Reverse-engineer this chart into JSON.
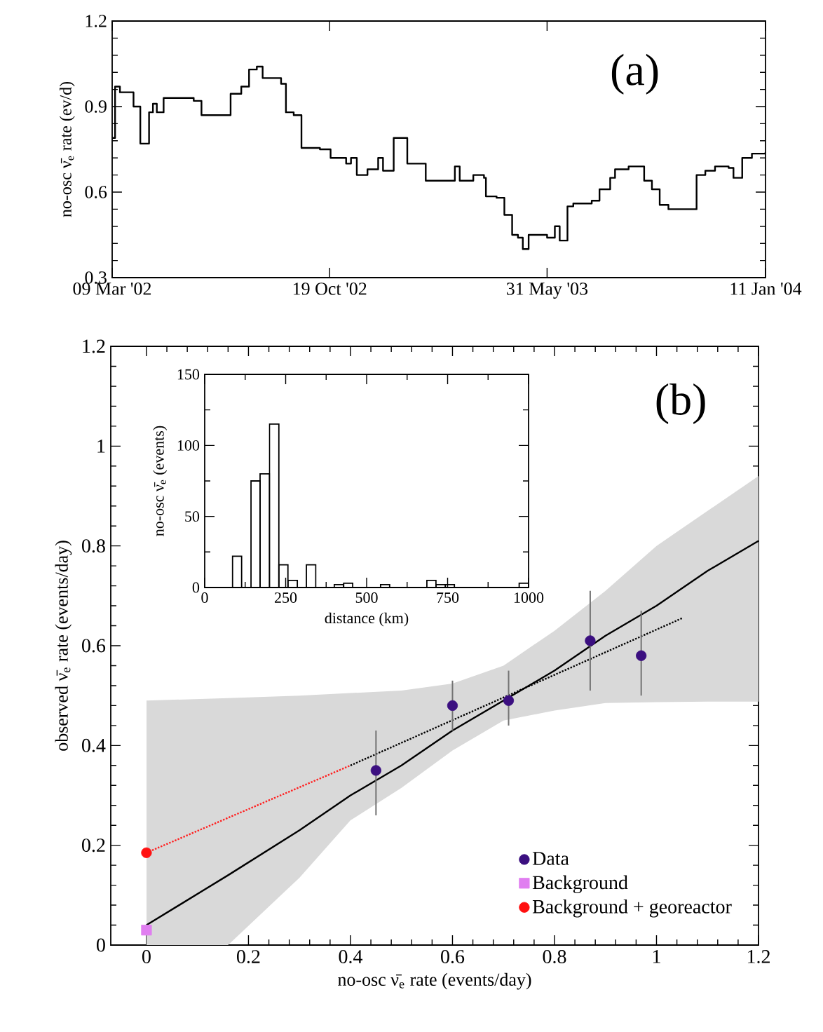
{
  "chart_data": [
    {
      "type": "step",
      "title": "(a)",
      "ylabel": "no-osc ν̄$_{e}$ rate (ev/d)",
      "color": "#000000",
      "marker": "none",
      "x": [
        "2002-03-09",
        "2002-03-12",
        "2002-03-17",
        "2002-03-25",
        "2002-03-31",
        "2002-04-07",
        "2002-04-12",
        "2002-04-16",
        "2002-04-20",
        "2002-04-24",
        "2002-05-01",
        "2002-05-16",
        "2002-06-01",
        "2002-06-09",
        "2002-07-04",
        "2002-07-09",
        "2002-07-20",
        "2002-07-28",
        "2002-08-05",
        "2002-08-11",
        "2002-08-30",
        "2002-09-04",
        "2002-09-12",
        "2002-09-20",
        "2002-10-09",
        "2002-10-20",
        "2002-11-05",
        "2002-11-10",
        "2002-11-16",
        "2002-11-27",
        "2002-12-08",
        "2002-12-13",
        "2002-12-24",
        "2003-01-04",
        "2003-01-07",
        "2003-01-20",
        "2003-01-26",
        "2003-02-17",
        "2003-02-25",
        "2003-03-02",
        "2003-03-16",
        "2003-03-27",
        "2003-03-29",
        "2003-04-09",
        "2003-04-17",
        "2003-04-25",
        "2003-05-01",
        "2003-05-06",
        "2003-05-12",
        "2003-05-31",
        "2003-06-08",
        "2003-06-13",
        "2003-06-21",
        "2003-06-27",
        "2003-07-16",
        "2003-07-24",
        "2003-08-04",
        "2003-08-09",
        "2003-08-23",
        "2003-09-04",
        "2003-09-08",
        "2003-09-16",
        "2003-09-24",
        "2003-10-03",
        "2003-10-24",
        "2003-11-01",
        "2003-11-10",
        "2003-11-20",
        "2003-12-04",
        "2003-12-09",
        "2003-12-18",
        "2003-12-28",
        "2004-01-11"
      ],
      "values": [
        0.79,
        0.97,
        0.95,
        0.95,
        0.9,
        0.77,
        0.77,
        0.88,
        0.91,
        0.88,
        0.93,
        0.93,
        0.92,
        0.87,
        0.87,
        0.945,
        0.97,
        1.03,
        1.04,
        1.0,
        0.98,
        0.88,
        0.87,
        0.755,
        0.75,
        0.72,
        0.7,
        0.72,
        0.66,
        0.68,
        0.72,
        0.675,
        0.79,
        0.79,
        0.7,
        0.7,
        0.64,
        0.64,
        0.69,
        0.64,
        0.66,
        0.65,
        0.585,
        0.58,
        0.52,
        0.45,
        0.44,
        0.4,
        0.45,
        0.44,
        0.48,
        0.43,
        0.55,
        0.56,
        0.57,
        0.61,
        0.65,
        0.68,
        0.69,
        0.69,
        0.64,
        0.61,
        0.555,
        0.54,
        0.54,
        0.66,
        0.675,
        0.69,
        0.685,
        0.65,
        0.72,
        0.735,
        0.74
      ],
      "xlim": [
        "2002-03-09",
        "2004-01-11"
      ],
      "xticks": [
        {
          "value": "2002-03-09",
          "label": "09 Mar '02"
        },
        {
          "value": "2002-10-19",
          "label": "19 Oct '02"
        },
        {
          "value": "2003-05-31",
          "label": "31 May '03"
        },
        {
          "value": "2004-01-11",
          "label": "11 Jan '04"
        }
      ],
      "ylim": [
        0.3,
        1.2
      ],
      "yticks": [
        0.3,
        0.6,
        0.9,
        1.2
      ]
    },
    {
      "type": "scatter",
      "title": "(b)",
      "xlabel": "no-osc ν̄$_{e}$ rate (events/day)",
      "ylabel": "observed ν̄$_{e}$ rate (events/day)",
      "legend": "bottom right",
      "xlim": [
        -0.07,
        1.2
      ],
      "xticks": [
        0,
        0.2,
        0.4,
        0.6,
        0.8,
        1,
        1.2
      ],
      "ylim": [
        0,
        1.2
      ],
      "yticks": [
        0,
        0.2,
        0.4,
        0.6,
        0.8,
        1,
        1.2
      ],
      "series": [
        {
          "type": "line",
          "color": "#000000",
          "line_style": "solid",
          "marker": "none",
          "x": [
            0,
            0.16,
            0.3,
            0.4,
            0.5,
            0.6,
            0.7,
            0.8,
            0.9,
            1.0,
            1.1,
            1.2
          ],
          "values": [
            0.04,
            0.14,
            0.23,
            0.3,
            0.36,
            0.43,
            0.49,
            0.55,
            0.62,
            0.68,
            0.75,
            0.81
          ],
          "lower": [
            0,
            0,
            0.135,
            0.25,
            0.315,
            0.39,
            0.45,
            0.47,
            0.485,
            0.487,
            0.488,
            0.488
          ],
          "upper": [
            0.49,
            0.495,
            0.5,
            0.505,
            0.51,
            0.524,
            0.56,
            0.63,
            0.71,
            0.8,
            0.87,
            0.94
          ]
        },
        {
          "type": "line",
          "color": "#ff2020",
          "line_style": "dotted",
          "marker": "none",
          "x": [
            0,
            0.4
          ],
          "values": [
            0.185,
            0.36
          ]
        },
        {
          "type": "line",
          "color": "#000000",
          "line_style": "dotted",
          "marker": "none",
          "x": [
            0.4,
            1.05
          ],
          "values": [
            0.36,
            0.655
          ]
        },
        {
          "name": "Data",
          "marker": "circle",
          "color": "#3b0f80",
          "x": [
            0.45,
            0.6,
            0.71,
            0.87,
            0.97
          ],
          "values": [
            0.35,
            0.48,
            0.49,
            0.61,
            0.58
          ],
          "errors": [
            [
              0.26,
              0.43
            ],
            [
              0.43,
              0.53
            ],
            [
              0.44,
              0.55
            ],
            [
              0.51,
              0.71
            ],
            [
              0.5,
              0.67
            ]
          ]
        },
        {
          "name": "Background",
          "marker": "square",
          "color": "#e07ef0",
          "x": [
            0
          ],
          "values": [
            0.03
          ]
        },
        {
          "name": "Background + georeactor",
          "marker": "circle",
          "color": "#ff1010",
          "x": [
            0
          ],
          "values": [
            0.185
          ]
        }
      ]
    },
    {
      "type": "histogram",
      "xlabel": "distance (km)",
      "ylabel": "no-osc ν̄$_{e}$ (events)",
      "color": "#000000",
      "bins": [
        0,
        29,
        57,
        86,
        114,
        143,
        171,
        200,
        229,
        257,
        286,
        314,
        343,
        371,
        400,
        429,
        457,
        486,
        514,
        543,
        571,
        600,
        629,
        657,
        686,
        714,
        743,
        771,
        800,
        829,
        857,
        886,
        914,
        943,
        971,
        1000
      ],
      "values": [
        0,
        0,
        0,
        22,
        0,
        75,
        80,
        115,
        16,
        5,
        0,
        16,
        0,
        0,
        2,
        3,
        0,
        0,
        0,
        2,
        0,
        0,
        0,
        0,
        5,
        2,
        2,
        0,
        0,
        0,
        0,
        0,
        0,
        0,
        3
      ],
      "xlim": [
        0,
        1000
      ],
      "xticks": [
        0,
        250,
        500,
        750,
        1000
      ],
      "ylim": [
        0,
        150
      ],
      "yticks": [
        0,
        50,
        100,
        150
      ]
    }
  ]
}
